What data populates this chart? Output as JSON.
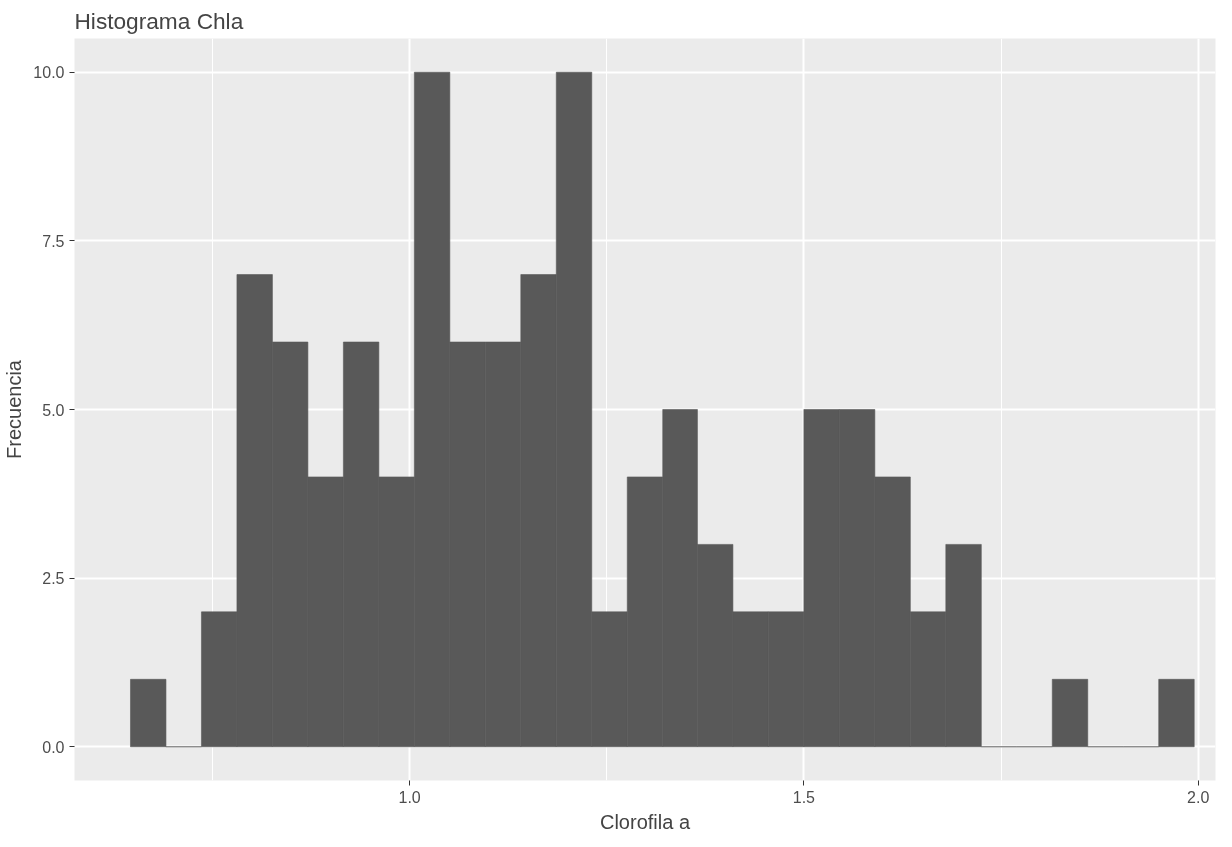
{
  "chart_data": {
    "type": "histogram",
    "title": "Histograma Chla",
    "xlabel": "Clorofila a",
    "ylabel": "Frecuencia",
    "bins": [
      0.646,
      0.691,
      0.736,
      0.781,
      0.826,
      0.871,
      0.916,
      0.961,
      1.006,
      1.051,
      1.096,
      1.141,
      1.186,
      1.231,
      1.276,
      1.321,
      1.365,
      1.41,
      1.455,
      1.5,
      1.545,
      1.59,
      1.635,
      1.68,
      1.725,
      1.77,
      1.815,
      1.86,
      1.905,
      1.95,
      1.995
    ],
    "values": [
      1,
      0,
      2,
      7,
      6,
      4,
      6,
      4,
      10,
      6,
      6,
      7,
      10,
      2,
      4,
      5,
      3,
      2,
      2,
      5,
      5,
      4,
      2,
      3,
      0,
      0,
      1,
      0,
      0,
      1
    ],
    "color": "#595959",
    "xlim": [
      0.575,
      2.022
    ],
    "ylim": [
      -0.5,
      10.5
    ],
    "xticks": [
      {
        "value": 0.75,
        "label": null
      },
      {
        "value": 1.0,
        "label": "1.0"
      },
      {
        "value": 1.25,
        "label": null
      },
      {
        "value": 1.5,
        "label": "1.5"
      },
      {
        "value": 1.75,
        "label": null
      },
      {
        "value": 2.0,
        "label": "2.0"
      }
    ],
    "yticks": [
      {
        "value": 0,
        "label": "0.0"
      },
      {
        "value": 2.5,
        "label": "2.5"
      },
      {
        "value": 5,
        "label": "5.0"
      },
      {
        "value": 7.5,
        "label": "7.5"
      },
      {
        "value": 10,
        "label": "10.0"
      }
    ],
    "grid": true
  }
}
